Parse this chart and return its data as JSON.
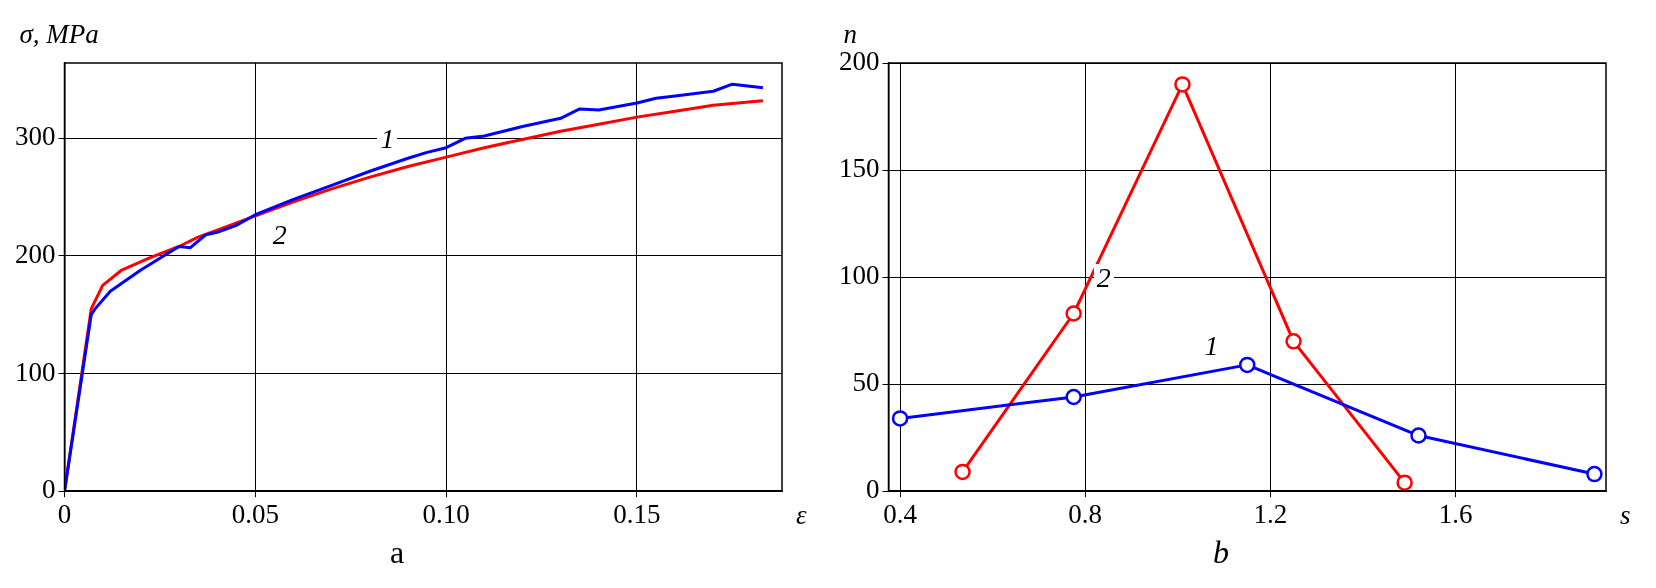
{
  "chart_data": [
    {
      "type": "line",
      "title": "a",
      "xlabel": "ε",
      "ylabel": "σ, MPa",
      "xlim": [
        0,
        0.188
      ],
      "ylim": [
        0,
        364
      ],
      "xticks": [
        0,
        0.05,
        {
          "value": 0.1,
          "label": "0.10"
        },
        0.15
      ],
      "yticks": [
        0,
        100,
        200,
        300
      ],
      "grid": true,
      "legend": false,
      "marker": "none",
      "series": [
        {
          "name": "1",
          "color": "#0000ff",
          "x": [
            0,
            0.007,
            0.008,
            0.012,
            0.02,
            0.025,
            0.03,
            0.033,
            0.037,
            0.04,
            0.045,
            0.05,
            0.06,
            0.065,
            0.07,
            0.08,
            0.09,
            0.095,
            0.1,
            0.105,
            0.11,
            0.115,
            0.12,
            0.13,
            0.135,
            0.14,
            0.15,
            0.155,
            0.16,
            0.17,
            0.175,
            0.183
          ],
          "values": [
            0,
            150,
            155,
            170,
            188,
            198,
            208,
            207,
            218,
            220,
            226,
            235,
            248,
            254,
            260,
            272,
            283,
            288,
            292,
            300,
            302,
            306,
            310,
            317,
            325,
            324,
            330,
            334,
            336,
            340,
            346,
            343
          ]
        },
        {
          "name": "2",
          "color": "#ff0000",
          "x": [
            0,
            0.007,
            0.01,
            0.015,
            0.022,
            0.03,
            0.035,
            0.04,
            0.05,
            0.06,
            0.07,
            0.08,
            0.09,
            0.1,
            0.11,
            0.12,
            0.13,
            0.14,
            0.15,
            0.16,
            0.17,
            0.18,
            0.183
          ],
          "values": [
            0,
            155,
            175,
            188,
            198,
            208,
            216,
            222,
            234,
            246,
            257,
            267,
            276,
            284,
            292,
            299,
            306,
            312,
            318,
            323,
            328,
            331,
            332
          ]
        }
      ]
    },
    {
      "type": "line",
      "title": "b",
      "xlabel": "s",
      "ylabel": "n",
      "xlim": [
        0.375,
        1.925
      ],
      "ylim": [
        0,
        200
      ],
      "xticks": [
        0.4,
        0.8,
        1.2,
        1.6
      ],
      "yticks": [
        0,
        50,
        100,
        150,
        200
      ],
      "grid": true,
      "legend": false,
      "marker": "circle",
      "series": [
        {
          "name": "1",
          "color": "#0000ff",
          "x": [
            0.4,
            0.775,
            1.15,
            1.52,
            1.9
          ],
          "values": [
            34,
            44,
            59,
            26,
            8
          ]
        },
        {
          "name": "2",
          "color": "#ff0000",
          "x": [
            0.535,
            0.775,
            1.01,
            1.25,
            1.49
          ],
          "values": [
            9,
            83,
            190,
            70,
            4
          ]
        }
      ]
    }
  ]
}
